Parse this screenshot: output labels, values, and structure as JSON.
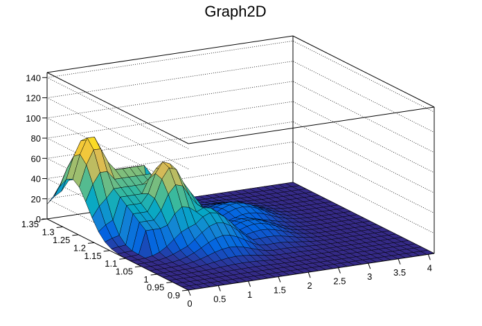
{
  "chart_data": {
    "type": "surface3d",
    "title": "Graph2D",
    "x": {
      "range": [
        0,
        4.1
      ],
      "ticks": [
        "0",
        "0.5",
        "1",
        "1.5",
        "2",
        "2.5",
        "3",
        "3.5",
        "4"
      ]
    },
    "y": {
      "range": [
        0.9,
        1.35
      ],
      "ticks": [
        "0.9",
        "0.95",
        "1",
        "1.05",
        "1.1",
        "1.15",
        "1.2",
        "1.25",
        "1.3",
        "1.35"
      ]
    },
    "z": {
      "range": [
        0,
        145
      ],
      "ticks": [
        "0",
        "20",
        "40",
        "60",
        "80",
        "100",
        "120",
        "140"
      ]
    },
    "grid": true,
    "colormap": [
      "#352a87",
      "#0363e1",
      "#1485d4",
      "#06a7c6",
      "#38b99e",
      "#92bf73",
      "#d9ba56",
      "#fcce2e",
      "#f9fb0e"
    ],
    "peaks": [
      {
        "x": 0.3,
        "y": 1.27,
        "z": 93
      },
      {
        "x": 1.0,
        "y": 1.16,
        "z": 78
      },
      {
        "x": 1.15,
        "y": 1.16,
        "z": 55
      },
      {
        "x": 1.35,
        "y": 1.1,
        "z": 38
      },
      {
        "x": 2.2,
        "y": 1.12,
        "z": 15
      },
      {
        "x": 2.4,
        "y": 1.2,
        "z": 17
      }
    ]
  }
}
